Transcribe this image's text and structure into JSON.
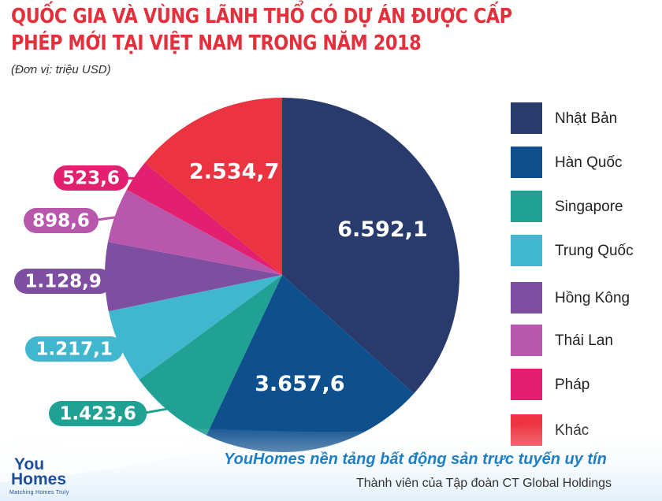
{
  "chart_data": {
    "type": "pie",
    "title": "QUỐC GIA VÀ VÙNG LÃNH THỔ CÓ DỰ ÁN ĐƯỢC CẤP PHÉP MỚI TẠI VIỆT NAM TRONG NĂM 2018",
    "subtitle": "(Đơn vị: triệu USD)",
    "legend_position": "right",
    "slices": [
      {
        "label": "Nhật Bản",
        "value": 6592.1,
        "display": "6.592,1",
        "color": "#283b6c"
      },
      {
        "label": "Hàn Quốc",
        "value": 3657.6,
        "display": "3.657,6",
        "color": "#0e4f8e"
      },
      {
        "label": "Singapore",
        "value": 1423.6,
        "display": "1.423,6",
        "color": "#21a193"
      },
      {
        "label": "Trung Quốc",
        "value": 1217.1,
        "display": "1.217,1",
        "color": "#41b7cf"
      },
      {
        "label": "Hồng Kông",
        "value": 1128.9,
        "display": "1.128,9",
        "color": "#7e4ea1"
      },
      {
        "label": "Thái Lan",
        "value": 898.6,
        "display": "898,6",
        "color": "#b957ac"
      },
      {
        "label": "Pháp",
        "value": 523.6,
        "display": "523,6",
        "color": "#e3206f"
      },
      {
        "label": "Khác",
        "value": 2534.7,
        "display": "2.534,7",
        "color": "#ec3340"
      }
    ]
  },
  "footer": {
    "brand_line": "YouHomes nền tảng bất động sản trực tuyến uy tín",
    "member_line": "Thành viên của Tập đoàn CT Global Holdings",
    "logo_word1": "You",
    "logo_word2": "Homes",
    "logo_tagline": "Matching Homes Truly"
  }
}
